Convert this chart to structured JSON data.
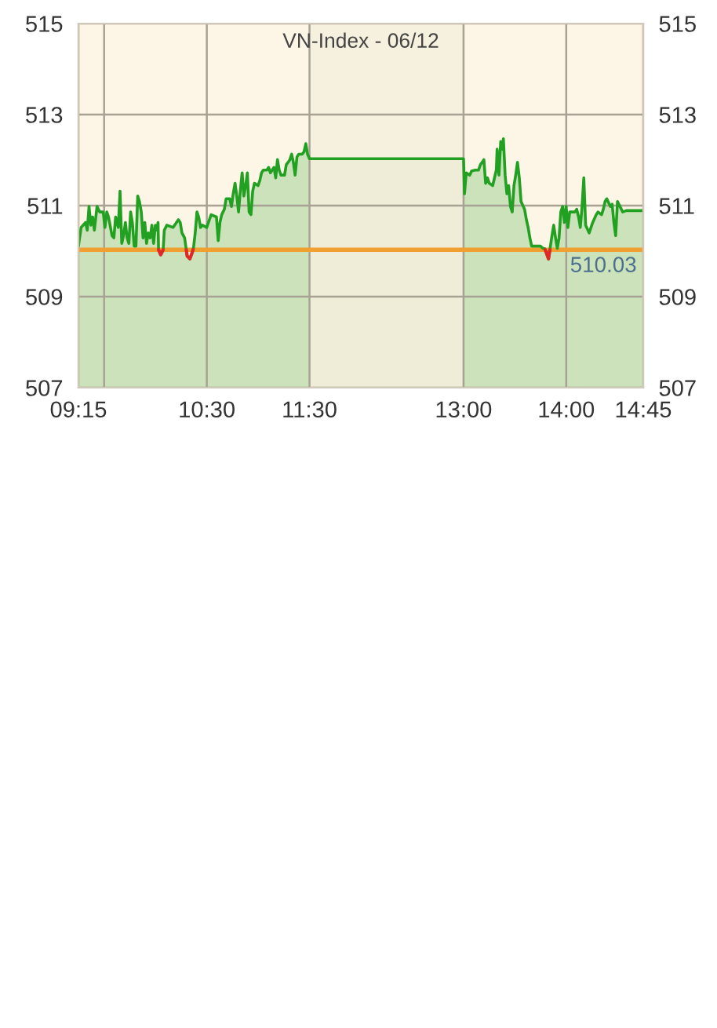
{
  "chart_data": {
    "type": "area",
    "title": "VN-Index - 06/12",
    "xlim": [
      9.25,
      14.75
    ],
    "xticks": [
      {
        "value": 9.25,
        "label": "09:15"
      },
      {
        "value": 9.5,
        "label": null
      },
      {
        "value": 10.5,
        "label": "10:30"
      },
      {
        "value": 11.5,
        "label": "11:30"
      },
      {
        "value": 13,
        "label": "13:00"
      },
      {
        "value": 14,
        "label": "14:00"
      },
      {
        "value": 14.75,
        "label": "14:45"
      }
    ],
    "ylim": [
      507,
      515
    ],
    "yticks": [
      507,
      509,
      511,
      513,
      515
    ],
    "y2lim": [
      507,
      515
    ],
    "y2ticks": [
      507,
      509,
      511,
      513,
      515
    ],
    "grid": true,
    "ref_lines": [
      {
        "axis": "y",
        "value": 510.03,
        "label": "510.03",
        "color": "#f0a030"
      }
    ],
    "bands": [
      {
        "axis": "x",
        "from": 11.5,
        "to": 13,
        "color": "#f4efdc"
      }
    ],
    "series": [
      {
        "color": "#22a022",
        "x": [
          9.25,
          9.276,
          9.319,
          9.336,
          9.353,
          9.371,
          9.388,
          9.405,
          9.431,
          9.457,
          9.491,
          9.508,
          9.526,
          9.543,
          9.577,
          9.595,
          9.612,
          9.638,
          9.655,
          9.672,
          9.689,
          9.707,
          9.724,
          9.741,
          9.758,
          9.775,
          9.793,
          9.81,
          9.827,
          9.844,
          9.862,
          9.879,
          9.896,
          9.913,
          9.93,
          9.948,
          9.965,
          9.982,
          9.999,
          10.017,
          10.025,
          10.03,
          10.051,
          10.075,
          10.086,
          10.111,
          10.172,
          10.223,
          10.241,
          10.258,
          10.284,
          10.309,
          10.335,
          10.353,
          10.37,
          10.387,
          10.404,
          10.421,
          10.439,
          10.456,
          10.499,
          10.525,
          10.542,
          10.594,
          10.611,
          10.628,
          10.645,
          10.671,
          10.688,
          10.723,
          10.74,
          10.757,
          10.775,
          10.792,
          10.809,
          10.826,
          10.844,
          10.861,
          10.878,
          10.895,
          10.912,
          10.93,
          10.947,
          10.964,
          10.999,
          11.016,
          11.033,
          11.05,
          11.085,
          11.102,
          11.119,
          11.154,
          11.171,
          11.188,
          11.205,
          11.222,
          11.257,
          11.274,
          11.291,
          11.309,
          11.326,
          11.343,
          11.36,
          11.378,
          11.395,
          11.429,
          11.446,
          11.464,
          11.481,
          11.5,
          13.0,
          13.009,
          13.026,
          13.06,
          13.078,
          13.112,
          13.146,
          13.164,
          13.181,
          13.198,
          13.215,
          13.233,
          13.25,
          13.284,
          13.319,
          13.327,
          13.345,
          13.362,
          13.379,
          13.388,
          13.405,
          13.422,
          13.439,
          13.457,
          13.474,
          13.491,
          13.508,
          13.525,
          13.543,
          13.56,
          13.594,
          13.612,
          13.629,
          13.646,
          13.663,
          13.706,
          13.749,
          13.775,
          13.792,
          13.81,
          13.827,
          13.844,
          13.861,
          13.878,
          13.896,
          13.913,
          13.93,
          13.947,
          13.965,
          13.982,
          13.999,
          14.016,
          14.034,
          14.085,
          14.102,
          14.12,
          14.137,
          14.154,
          14.171,
          14.189,
          14.223,
          14.258,
          14.292,
          14.309,
          14.344,
          14.361,
          14.378,
          14.395,
          14.43,
          14.447,
          14.464,
          14.481,
          14.499,
          14.55,
          14.585,
          14.75
        ],
        "values": [
          510.11,
          510.52,
          510.63,
          510.46,
          510.98,
          510.57,
          510.75,
          510.46,
          510.98,
          510.86,
          510.86,
          510.52,
          510.86,
          510.75,
          510.34,
          510.29,
          510.75,
          510.52,
          511.32,
          510.17,
          510.34,
          510.63,
          510.29,
          510.17,
          510.86,
          510.63,
          510.11,
          510.11,
          511.21,
          511.09,
          510.86,
          510.29,
          510.63,
          510.17,
          510.4,
          510.29,
          510.57,
          510.17,
          510.57,
          510.46,
          510.63,
          510.03,
          509.92,
          510.03,
          510.46,
          510.57,
          510.52,
          510.69,
          510.63,
          510.4,
          510.29,
          509.89,
          509.83,
          509.94,
          510.06,
          510.4,
          510.86,
          510.75,
          510.52,
          510.57,
          510.52,
          510.69,
          510.8,
          510.75,
          510.23,
          510.63,
          510.8,
          510.92,
          511.15,
          511.15,
          510.98,
          511.26,
          511.49,
          511.21,
          510.86,
          511.32,
          511.72,
          511.21,
          511.44,
          511.72,
          510.86,
          510.8,
          511.32,
          511.49,
          511.44,
          511.55,
          511.72,
          511.78,
          511.78,
          511.84,
          511.72,
          511.84,
          511.61,
          512.01,
          511.78,
          511.67,
          511.67,
          511.9,
          511.95,
          512.01,
          512.13,
          511.95,
          511.67,
          512.07,
          512.13,
          512.13,
          512.18,
          512.36,
          512.13,
          512.03,
          512.03,
          511.26,
          511.72,
          511.67,
          511.76,
          511.78,
          511.78,
          511.9,
          511.95,
          512.01,
          511.49,
          511.61,
          511.49,
          511.44,
          511.78,
          512.24,
          511.67,
          512.41,
          512.24,
          512.47,
          511.67,
          511.26,
          511.44,
          510.98,
          510.86,
          511.44,
          511.67,
          511.95,
          511.61,
          511.09,
          510.92,
          510.69,
          510.52,
          510.29,
          510.11,
          510.11,
          510.11,
          510.06,
          510.05,
          509.94,
          509.83,
          510.08,
          510.34,
          510.57,
          510.29,
          510.06,
          510.29,
          510.86,
          510.98,
          510.63,
          510.98,
          510.52,
          510.86,
          510.86,
          510.92,
          510.75,
          510.52,
          510.98,
          511.61,
          510.57,
          510.4,
          510.63,
          510.8,
          510.86,
          510.8,
          510.92,
          511.09,
          511.15,
          510.98,
          511.03,
          510.63,
          510.34,
          511.09,
          510.86,
          510.89,
          510.89
        ]
      },
      {
        "type": "line",
        "color": "#e02828",
        "x": [
          10.03,
          10.051,
          10.075,
          10.2,
          10.3,
          10.309,
          10.335,
          10.353,
          10.366,
          12.0,
          13.795,
          13.81,
          13.827,
          13.841
        ],
        "values": [
          510.03,
          509.92,
          510.03,
          null,
          510.03,
          509.89,
          509.83,
          509.94,
          510.03,
          null,
          510.03,
          509.94,
          509.83,
          510.03
        ]
      }
    ]
  }
}
